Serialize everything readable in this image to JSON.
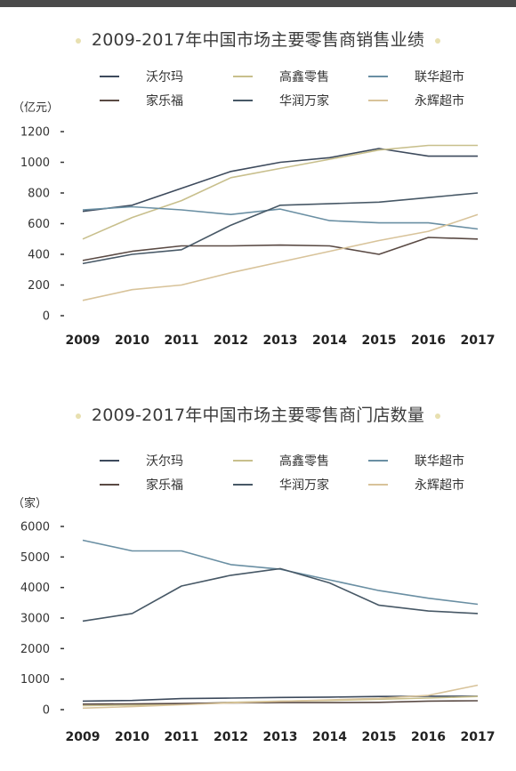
{
  "charts": [
    {
      "title": "2009-2017年中国市场主要零售商销售业绩",
      "unit": "（亿元）"
    },
    {
      "title": "2009-2017年中国市场主要零售商门店数量",
      "unit": "（家）"
    }
  ],
  "chart_data": [
    {
      "type": "line",
      "title": "2009-2017年中国市场主要零售商销售业绩",
      "ylabel": "（亿元）",
      "xlabel": "",
      "x": [
        "2009",
        "2010",
        "2011",
        "2012",
        "2013",
        "2014",
        "2015",
        "2016",
        "2017"
      ],
      "ylim": [
        0,
        1200
      ],
      "yticks": [
        0,
        200,
        400,
        600,
        800,
        1000,
        1200
      ],
      "grid": false,
      "legend_position": "top",
      "series": [
        {
          "name": "沃尔玛",
          "color": "#3d4a5c",
          "values": [
            680,
            720,
            830,
            940,
            1000,
            1030,
            1090,
            1040,
            1040
          ]
        },
        {
          "name": "高鑫零售",
          "color": "#c8bf8c",
          "values": [
            500,
            640,
            750,
            900,
            960,
            1020,
            1080,
            1110,
            1110
          ]
        },
        {
          "name": "联华超市",
          "color": "#6a8fa3",
          "values": [
            690,
            710,
            690,
            660,
            695,
            620,
            605,
            605,
            565
          ]
        },
        {
          "name": "家乐福",
          "color": "#5a4a44",
          "values": [
            360,
            420,
            455,
            455,
            460,
            455,
            400,
            510,
            500
          ]
        },
        {
          "name": "华润万家",
          "color": "#475866",
          "values": [
            340,
            400,
            430,
            590,
            720,
            730,
            740,
            770,
            800
          ]
        },
        {
          "name": "永辉超市",
          "color": "#d8c39a",
          "values": [
            100,
            170,
            200,
            280,
            350,
            420,
            490,
            550,
            660
          ]
        }
      ]
    },
    {
      "type": "line",
      "title": "2009-2017年中国市场主要零售商门店数量",
      "ylabel": "（家）",
      "xlabel": "",
      "x": [
        "2009",
        "2010",
        "2011",
        "2012",
        "2013",
        "2014",
        "2015",
        "2016",
        "2017"
      ],
      "ylim": [
        0,
        6000
      ],
      "yticks": [
        0,
        1000,
        2000,
        3000,
        4000,
        5000,
        6000
      ],
      "grid": false,
      "legend_position": "top",
      "series": [
        {
          "name": "沃尔玛",
          "color": "#3d4a5c",
          "values": [
            280,
            300,
            360,
            380,
            400,
            410,
            430,
            440,
            440
          ]
        },
        {
          "name": "高鑫零售",
          "color": "#c8bf8c",
          "values": [
            130,
            150,
            180,
            240,
            280,
            300,
            340,
            380,
            430
          ]
        },
        {
          "name": "联华超市",
          "color": "#6a8fa3",
          "values": [
            5550,
            5200,
            5200,
            4750,
            4600,
            4250,
            3900,
            3650,
            3450
          ]
        },
        {
          "name": "家乐福",
          "color": "#5a4a44",
          "values": [
            180,
            190,
            200,
            220,
            230,
            230,
            240,
            280,
            290
          ]
        },
        {
          "name": "华润万家",
          "color": "#475866",
          "values": [
            2900,
            3150,
            4050,
            4400,
            4620,
            4150,
            3420,
            3230,
            3150
          ]
        },
        {
          "name": "永辉超市",
          "color": "#d8c39a",
          "values": [
            50,
            100,
            160,
            220,
            270,
            320,
            370,
            470,
            800
          ]
        }
      ]
    }
  ]
}
